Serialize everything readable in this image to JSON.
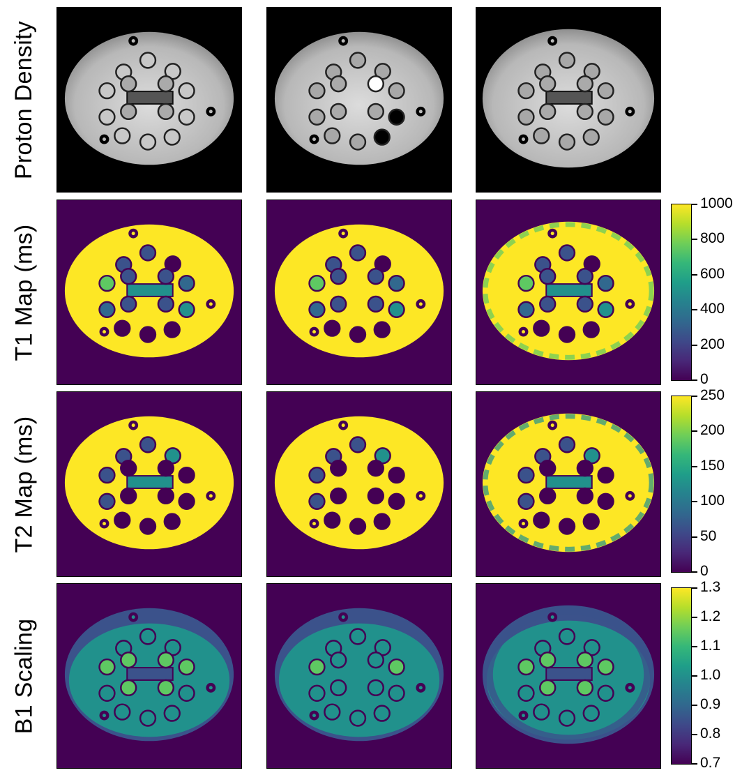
{
  "rows": [
    {
      "label": "Proton Density",
      "kind": "gray",
      "colorbar": null
    },
    {
      "label": "T1 Map (ms)",
      "kind": "t1",
      "colorbar": {
        "ticks": [
          "1000",
          "800",
          "600",
          "400",
          "200",
          "0"
        ]
      }
    },
    {
      "label": "T2 Map (ms)",
      "kind": "t2",
      "colorbar": {
        "ticks": [
          "250",
          "200",
          "150",
          "100",
          "50",
          "0"
        ]
      }
    },
    {
      "label": "B1 Scaling",
      "kind": "b1",
      "colorbar": {
        "ticks": [
          "1.3",
          "1.2",
          "1.1",
          "1.0",
          "0.9",
          "0.8",
          "0.7"
        ]
      }
    }
  ],
  "colors": {
    "viridis_dark": "#440154",
    "viridis_yellow": "#fde725",
    "viridis_teal": "#21918c",
    "viridis_blue": "#3b528b",
    "viridis_green": "#5ec962"
  }
}
